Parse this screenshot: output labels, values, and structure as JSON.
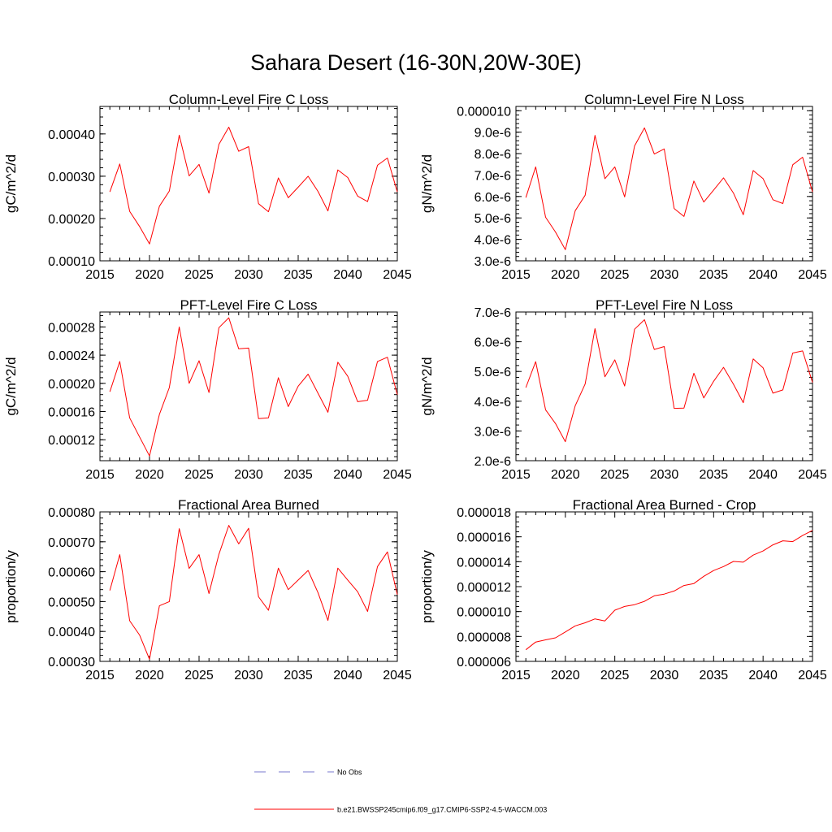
{
  "title": "Sahara Desert (16-30N,20W-30E)",
  "colors": {
    "model_line": "#ff0000",
    "obs_line": "#7777cc",
    "axis": "#000000"
  },
  "legend": {
    "items": [
      {
        "label": "No Obs",
        "style": "dashed",
        "color": "#7777cc"
      },
      {
        "label": "b.e21.BWSSP245cmip6.f09_g17.CMIP6-SSP2-4.5-WACCM.003",
        "style": "solid",
        "color": "#ff0000"
      }
    ]
  },
  "chart_data": [
    {
      "type": "line",
      "title": "Column-Level Fire C Loss",
      "ylabel": "gC/m^2/d",
      "xlim": [
        2015,
        2045
      ],
      "ylim": [
        0.0001,
        0.000465
      ],
      "x_ticks": [
        2015,
        2020,
        2025,
        2030,
        2035,
        2040,
        2045
      ],
      "y_ticks": [
        0.0001,
        0.0002,
        0.0003,
        0.0004
      ],
      "y_tick_labels": [
        "0.00010",
        "0.00020",
        "0.00030",
        "0.00040"
      ],
      "x": [
        2016,
        2017,
        2018,
        2019,
        2020,
        2021,
        2022,
        2023,
        2024,
        2025,
        2026,
        2027,
        2028,
        2029,
        2030,
        2031,
        2032,
        2033,
        2034,
        2035,
        2036,
        2037,
        2038,
        2039,
        2040,
        2041,
        2042,
        2043,
        2044,
        2045
      ],
      "series": [
        {
          "name": "b.e21.BWSSP245cmip6.f09_g17.CMIP6-SSP2-4.5-WACCM.003",
          "values": [
            0.000263,
            0.000329,
            0.000217,
            0.000181,
            0.00014,
            0.000229,
            0.000265,
            0.000397,
            0.000301,
            0.000328,
            0.00026,
            0.000375,
            0.000416,
            0.000359,
            0.00037,
            0.000235,
            0.000216,
            0.000296,
            0.000249,
            0.000274,
            0.0003,
            0.000264,
            0.000218,
            0.000315,
            0.000297,
            0.000253,
            0.00024,
            0.000326,
            0.000343,
            0.000263
          ]
        }
      ]
    },
    {
      "type": "line",
      "title": "Column-Level Fire N Loss",
      "ylabel": "gN/m^2/d",
      "xlim": [
        2015,
        2045
      ],
      "ylim": [
        3e-06,
        1.02e-05
      ],
      "x_ticks": [
        2015,
        2020,
        2025,
        2030,
        2035,
        2040,
        2045
      ],
      "y_ticks": [
        3e-06,
        4e-06,
        5e-06,
        6e-06,
        7e-06,
        8e-06,
        9e-06,
        1e-05
      ],
      "y_tick_labels": [
        "3.0e-6",
        "4.0e-6",
        "5.0e-6",
        "6.0e-6",
        "7.0e-6",
        "8.0e-6",
        "9.0e-6",
        "0.000010"
      ],
      "x": [
        2016,
        2017,
        2018,
        2019,
        2020,
        2021,
        2022,
        2023,
        2024,
        2025,
        2026,
        2027,
        2028,
        2029,
        2030,
        2031,
        2032,
        2033,
        2034,
        2035,
        2036,
        2037,
        2038,
        2039,
        2040,
        2041,
        2042,
        2043,
        2044,
        2045
      ],
      "series": [
        {
          "name": "b.e21.BWSSP245cmip6.f09_g17.CMIP6-SSP2-4.5-WACCM.003",
          "values": [
            5.95e-06,
            7.38e-06,
            5.03e-06,
            4.34e-06,
            3.52e-06,
            5.34e-06,
            6.06e-06,
            8.85e-06,
            6.83e-06,
            7.38e-06,
            5.98e-06,
            8.36e-06,
            9.2e-06,
            7.98e-06,
            8.22e-06,
            5.44e-06,
            5.07e-06,
            6.72e-06,
            5.74e-06,
            6.3e-06,
            6.87e-06,
            6.16e-06,
            5.15e-06,
            7.21e-06,
            6.83e-06,
            5.85e-06,
            5.67e-06,
            7.48e-06,
            7.83e-06,
            6.21e-06
          ]
        }
      ]
    },
    {
      "type": "line",
      "title": "PFT-Level Fire C Loss",
      "ylabel": "gC/m^2/d",
      "xlim": [
        2015,
        2045
      ],
      "ylim": [
        9.03e-05,
        0.0003012
      ],
      "x_ticks": [
        2015,
        2020,
        2025,
        2030,
        2035,
        2040,
        2045
      ],
      "y_ticks": [
        0.00012,
        0.00016,
        0.0002,
        0.00024,
        0.00028
      ],
      "y_tick_labels": [
        "0.00012",
        "0.00016",
        "0.00020",
        "0.00024",
        "0.00028"
      ],
      "x": [
        2016,
        2017,
        2018,
        2019,
        2020,
        2021,
        2022,
        2023,
        2024,
        2025,
        2026,
        2027,
        2028,
        2029,
        2030,
        2031,
        2032,
        2033,
        2034,
        2035,
        2036,
        2037,
        2038,
        2039,
        2040,
        2041,
        2042,
        2043,
        2044,
        2045
      ],
      "series": [
        {
          "name": "b.e21.BWSSP245cmip6.f09_g17.CMIP6-SSP2-4.5-WACCM.003",
          "values": [
            0.000188,
            0.000231,
            0.000151,
            0.000124,
            9.7e-05,
            0.000156,
            0.000194,
            0.00028,
            0.0002,
            0.000232,
            0.000187,
            0.000279,
            0.000293,
            0.000249,
            0.00025,
            0.00015,
            0.000151,
            0.000208,
            0.000167,
            0.000196,
            0.000213,
            0.000186,
            0.000159,
            0.00023,
            0.00021,
            0.000174,
            0.000176,
            0.000231,
            0.000237,
            0.000184
          ]
        }
      ]
    },
    {
      "type": "line",
      "title": "PFT-Level Fire N Loss",
      "ylabel": "gN/m^2/d",
      "xlim": [
        2015,
        2045
      ],
      "ylim": [
        2e-06,
        7e-06
      ],
      "x_ticks": [
        2015,
        2020,
        2025,
        2030,
        2035,
        2040,
        2045
      ],
      "y_ticks": [
        2e-06,
        3e-06,
        4e-06,
        5e-06,
        6e-06,
        7e-06
      ],
      "y_tick_labels": [
        "2.0e-6",
        "3.0e-6",
        "4.0e-6",
        "5.0e-6",
        "6.0e-6",
        "7.0e-6"
      ],
      "x": [
        2016,
        2017,
        2018,
        2019,
        2020,
        2021,
        2022,
        2023,
        2024,
        2025,
        2026,
        2027,
        2028,
        2029,
        2030,
        2031,
        2032,
        2033,
        2034,
        2035,
        2036,
        2037,
        2038,
        2039,
        2040,
        2041,
        2042,
        2043,
        2044,
        2045
      ],
      "series": [
        {
          "name": "b.e21.BWSSP245cmip6.f09_g17.CMIP6-SSP2-4.5-WACCM.003",
          "values": [
            4.46e-06,
            5.33e-06,
            3.71e-06,
            3.25e-06,
            2.64e-06,
            3.85e-06,
            4.58e-06,
            6.44e-06,
            4.82e-06,
            5.39e-06,
            4.51e-06,
            6.42e-06,
            6.74e-06,
            5.74e-06,
            5.84e-06,
            3.76e-06,
            3.77e-06,
            4.94e-06,
            4.11e-06,
            4.67e-06,
            5.14e-06,
            4.57e-06,
            3.95e-06,
            5.42e-06,
            5.12e-06,
            4.27e-06,
            4.38e-06,
            5.62e-06,
            5.69e-06,
            4.63e-06
          ]
        }
      ]
    },
    {
      "type": "line",
      "title": "Fractional Area Burned",
      "ylabel": "proportion/y",
      "xlim": [
        2015,
        2045
      ],
      "ylim": [
        0.0003,
        0.0008
      ],
      "x_ticks": [
        2015,
        2020,
        2025,
        2030,
        2035,
        2040,
        2045
      ],
      "y_ticks": [
        0.0003,
        0.0004,
        0.0005,
        0.0006,
        0.0007,
        0.0008
      ],
      "y_tick_labels": [
        "0.00030",
        "0.00040",
        "0.00050",
        "0.00060",
        "0.00070",
        "0.00080"
      ],
      "x": [
        2016,
        2017,
        2018,
        2019,
        2020,
        2021,
        2022,
        2023,
        2024,
        2025,
        2026,
        2027,
        2028,
        2029,
        2030,
        2031,
        2032,
        2033,
        2034,
        2035,
        2036,
        2037,
        2038,
        2039,
        2040,
        2041,
        2042,
        2043,
        2044,
        2045
      ],
      "series": [
        {
          "name": "b.e21.BWSSP245cmip6.f09_g17.CMIP6-SSP2-4.5-WACCM.003",
          "values": [
            0.000537,
            0.000657,
            0.000436,
            0.000388,
            0.000307,
            0.000486,
            0.0005,
            0.000744,
            0.000611,
            0.000657,
            0.000527,
            0.000658,
            0.000755,
            0.000693,
            0.000745,
            0.000516,
            0.000471,
            0.000612,
            0.00054,
            0.000572,
            0.000604,
            0.00053,
            0.000437,
            0.000612,
            0.000572,
            0.000533,
            0.000467,
            0.000617,
            0.000666,
            0.000523
          ]
        }
      ]
    },
    {
      "type": "line",
      "title": "Fractional Area Burned - Crop",
      "ylabel": "proportion/y",
      "xlim": [
        2015,
        2045
      ],
      "ylim": [
        6e-06,
        1.8e-05
      ],
      "x_ticks": [
        2015,
        2020,
        2025,
        2030,
        2035,
        2040,
        2045
      ],
      "y_ticks": [
        6e-06,
        8e-06,
        1e-05,
        1.2e-05,
        1.4e-05,
        1.6e-05,
        1.8e-05
      ],
      "y_tick_labels": [
        "0.000006",
        "0.000008",
        "0.000010",
        "0.000012",
        "0.000014",
        "0.000016",
        "0.000018"
      ],
      "x": [
        2016,
        2017,
        2018,
        2019,
        2020,
        2021,
        2022,
        2023,
        2024,
        2025,
        2026,
        2027,
        2028,
        2029,
        2030,
        2031,
        2032,
        2033,
        2034,
        2035,
        2036,
        2037,
        2038,
        2039,
        2040,
        2041,
        2042,
        2043,
        2044,
        2045
      ],
      "series": [
        {
          "name": "b.e21.BWSSP245cmip6.f09_g17.CMIP6-SSP2-4.5-WACCM.003",
          "values": [
            6.93e-06,
            7.55e-06,
            7.73e-06,
            7.89e-06,
            8.36e-06,
            8.85e-06,
            9.1e-06,
            9.41e-06,
            9.25e-06,
            1.011e-05,
            1.041e-05,
            1.055e-05,
            1.082e-05,
            1.126e-05,
            1.14e-05,
            1.165e-05,
            1.209e-05,
            1.225e-05,
            1.283e-05,
            1.329e-05,
            1.361e-05,
            1.402e-05,
            1.396e-05,
            1.453e-05,
            1.486e-05,
            1.535e-05,
            1.568e-05,
            1.561e-05,
            1.61e-05,
            1.651e-05
          ]
        }
      ]
    }
  ]
}
